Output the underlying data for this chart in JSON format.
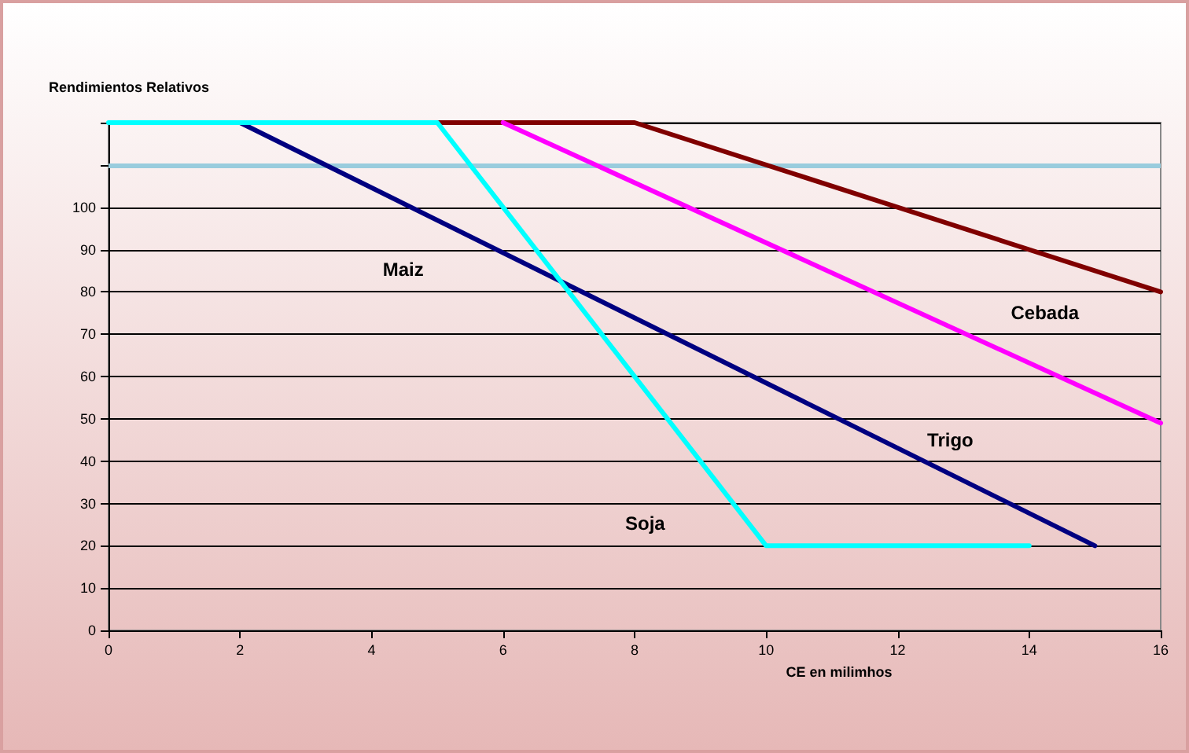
{
  "chart_data": {
    "type": "line",
    "xlabel": "CE en milimhos",
    "ylabel": "Rendimientos Relativos",
    "xlim": [
      0,
      16
    ],
    "xticks": [
      0,
      2,
      4,
      6,
      8,
      10,
      12,
      14,
      16
    ],
    "ylim": [
      0,
      120
    ],
    "yticks": [
      0,
      10,
      20,
      30,
      40,
      50,
      60,
      70,
      80,
      90,
      100,
      {
        "value": 110,
        "label": null
      },
      {
        "value": 120,
        "label": null
      }
    ],
    "grid": "y",
    "marker": "none",
    "line_style": "solid",
    "series": [
      {
        "color": "#800000",
        "x": [
          5,
          8,
          16
        ],
        "values": [
          120,
          120,
          80
        ]
      },
      {
        "color": "#ff00ff",
        "x": [
          6,
          16
        ],
        "values": [
          120,
          49
        ]
      },
      {
        "color": "#000080",
        "x": [
          2,
          15
        ],
        "values": [
          120,
          20
        ]
      },
      {
        "color": "#00ffff",
        "x": [
          0,
          5,
          10,
          14
        ],
        "values": [
          120,
          120,
          20,
          20
        ]
      }
    ],
    "ref_lines": [
      {
        "axis": "y",
        "value": 110,
        "color": "#99ccdd"
      }
    ],
    "annotations": [
      "Maiz",
      "Cebada",
      "Trigo",
      "Soja"
    ]
  }
}
